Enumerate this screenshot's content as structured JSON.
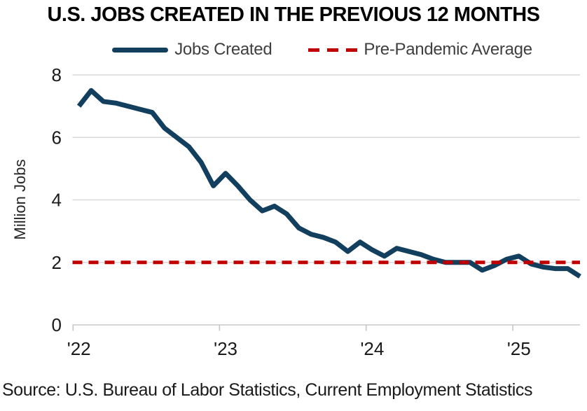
{
  "title": "U.S. JOBS CREATED IN THE PREVIOUS 12 MONTHS",
  "legend": {
    "jobs_created": "Jobs Created",
    "pre_pandemic": "Pre-Pandemic Average"
  },
  "source": "Source: U.S. Bureau of Labor Statistics, Current Employment Statistics",
  "colors": {
    "line": "#133f5e",
    "average": "#c00000",
    "gridline": "#d9d9d9",
    "axis": "#c6c6c6",
    "tick_text": "#1a1a1a",
    "ylabel_text": "#262626",
    "legend_text": "#3f3f3f",
    "title_text": "#000000"
  },
  "chart_data": {
    "type": "line",
    "title": "U.S. JOBS CREATED IN THE PREVIOUS 12 MONTHS",
    "xlabel": "",
    "ylabel": "Million Jobs",
    "ylim": [
      0,
      8
    ],
    "yticks": [
      0,
      2,
      4,
      6,
      8
    ],
    "xtick_labels": [
      "'22",
      "'23",
      "'24",
      "'25"
    ],
    "grid": "horizontal",
    "legend_position": "top",
    "x": [
      "2022-01",
      "2022-02",
      "2022-03",
      "2022-04",
      "2022-05",
      "2022-06",
      "2022-07",
      "2022-08",
      "2022-09",
      "2022-10",
      "2022-11",
      "2022-12",
      "2023-01",
      "2023-02",
      "2023-03",
      "2023-04",
      "2023-05",
      "2023-06",
      "2023-07",
      "2023-08",
      "2023-09",
      "2023-10",
      "2023-11",
      "2023-12",
      "2024-01",
      "2024-02",
      "2024-03",
      "2024-04",
      "2024-05",
      "2024-06",
      "2024-07",
      "2024-08",
      "2024-09",
      "2024-10",
      "2024-11",
      "2024-12",
      "2025-01",
      "2025-02",
      "2025-03",
      "2025-04",
      "2025-05",
      "2025-06"
    ],
    "series": [
      {
        "name": "Jobs Created",
        "style": "solid",
        "values": [
          7.0,
          7.5,
          7.15,
          7.1,
          7.0,
          6.9,
          6.8,
          6.3,
          6.0,
          5.7,
          5.2,
          4.45,
          4.85,
          4.45,
          4.0,
          3.65,
          3.8,
          3.55,
          3.1,
          2.9,
          2.8,
          2.65,
          2.35,
          2.65,
          2.4,
          2.2,
          2.45,
          2.35,
          2.25,
          2.1,
          2.0,
          2.0,
          2.0,
          1.75,
          1.9,
          2.1,
          2.2,
          1.95,
          1.85,
          1.8,
          1.8,
          1.55
        ]
      },
      {
        "name": "Pre-Pandemic Average",
        "style": "dashed",
        "constant_value": 2.0
      }
    ]
  }
}
